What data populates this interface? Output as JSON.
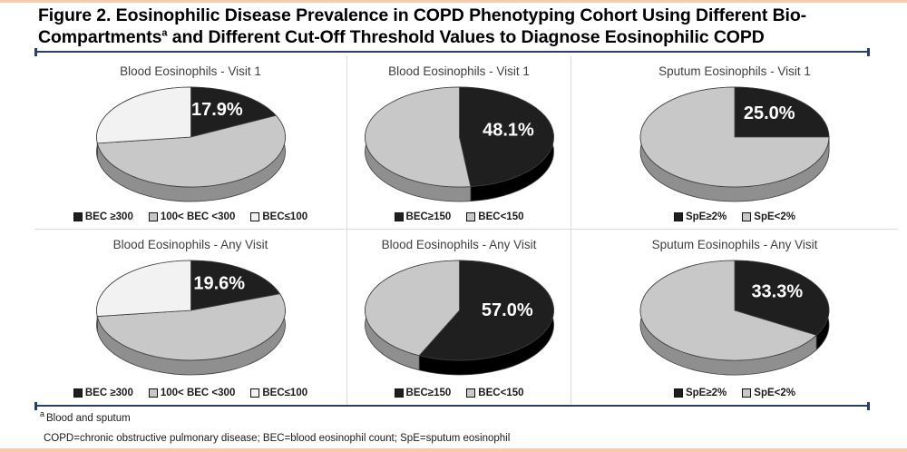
{
  "figure": {
    "title_main": "Figure 2. Eosinophilic Disease Prevalence in COPD Phenotyping Cohort Using Different Bio-Compartments",
    "title_sup": "a",
    "title_rest": " and Different Cut-Off Threshold Values to Diagnose Eosinophilic COPD"
  },
  "footnotes": {
    "sup": "a",
    "note": "Blood and sputum",
    "abbrev": "COPD=chronic obstructive pulmonary disease; BEC=blood eosinophil count; SpE=sputum eosinophil"
  },
  "colors": {
    "accent_peach": "#f8cbad",
    "accent_navy": "#2a3f63",
    "panel_divider": "#dcdcdc",
    "slice_black": "#1f1f1f",
    "slice_gray": "#c8c8c8",
    "slice_white": "#f2f2f2",
    "data_label_text": "#ffffff"
  },
  "chart_data": [
    {
      "type": "pie",
      "style": "3d",
      "title": "Blood Eosinophils - Visit 1",
      "data_label": "17.9%",
      "label_color": "#ffffff",
      "slices": [
        {
          "label": "BEC ≥300",
          "value": 17.9,
          "color": "#1f1f1f",
          "side": "#000000"
        },
        {
          "label": "100< BEC <300",
          "value": 55.1,
          "color": "#c8c8c8",
          "side": "#8f8f8f"
        },
        {
          "label": "BEC≤100",
          "value": 27.0,
          "color": "#f2f2f2",
          "side": "#dcdcdc"
        }
      ]
    },
    {
      "type": "pie",
      "style": "3d",
      "title": "Blood Eosinophils - Visit 1",
      "data_label": "48.1%",
      "label_color": "#ffffff",
      "slices": [
        {
          "label": "BEC≥150",
          "value": 48.1,
          "color": "#1f1f1f",
          "side": "#000000"
        },
        {
          "label": "BEC<150",
          "value": 51.9,
          "color": "#c8c8c8",
          "side": "#8f8f8f"
        }
      ]
    },
    {
      "type": "pie",
      "style": "3d",
      "title": "Sputum Eosinophils - Visit 1",
      "data_label": "25.0%",
      "label_color": "#ffffff",
      "slices": [
        {
          "label": "SpE≥2%",
          "value": 25.0,
          "color": "#1f1f1f",
          "side": "#000000"
        },
        {
          "label": "SpE<2%",
          "value": 75.0,
          "color": "#c8c8c8",
          "side": "#8f8f8f"
        }
      ]
    },
    {
      "type": "pie",
      "style": "3d",
      "title": "Blood Eosinophils - Any Visit",
      "data_label": "19.6%",
      "label_color": "#ffffff",
      "slices": [
        {
          "label": "BEC ≥300",
          "value": 19.6,
          "color": "#1f1f1f",
          "side": "#000000"
        },
        {
          "label": "100< BEC <300",
          "value": 53.5,
          "color": "#c8c8c8",
          "side": "#8f8f8f"
        },
        {
          "label": "BEC≤100",
          "value": 26.9,
          "color": "#f2f2f2",
          "side": "#dcdcdc"
        }
      ]
    },
    {
      "type": "pie",
      "style": "3d",
      "title": "Blood Eosinophils - Any Visit",
      "data_label": "57.0%",
      "label_color": "#ffffff",
      "slices": [
        {
          "label": "BEC≥150",
          "value": 57.0,
          "color": "#1f1f1f",
          "side": "#000000"
        },
        {
          "label": "BEC<150",
          "value": 43.0,
          "color": "#c8c8c8",
          "side": "#8f8f8f"
        }
      ]
    },
    {
      "type": "pie",
      "style": "3d",
      "title": "Sputum Eosinophils - Any Visit",
      "data_label": "33.3%",
      "label_color": "#ffffff",
      "slices": [
        {
          "label": "SpE≥2%",
          "value": 33.3,
          "color": "#1f1f1f",
          "side": "#000000"
        },
        {
          "label": "SpE<2%",
          "value": 66.7,
          "color": "#c8c8c8",
          "side": "#8f8f8f"
        }
      ]
    }
  ]
}
